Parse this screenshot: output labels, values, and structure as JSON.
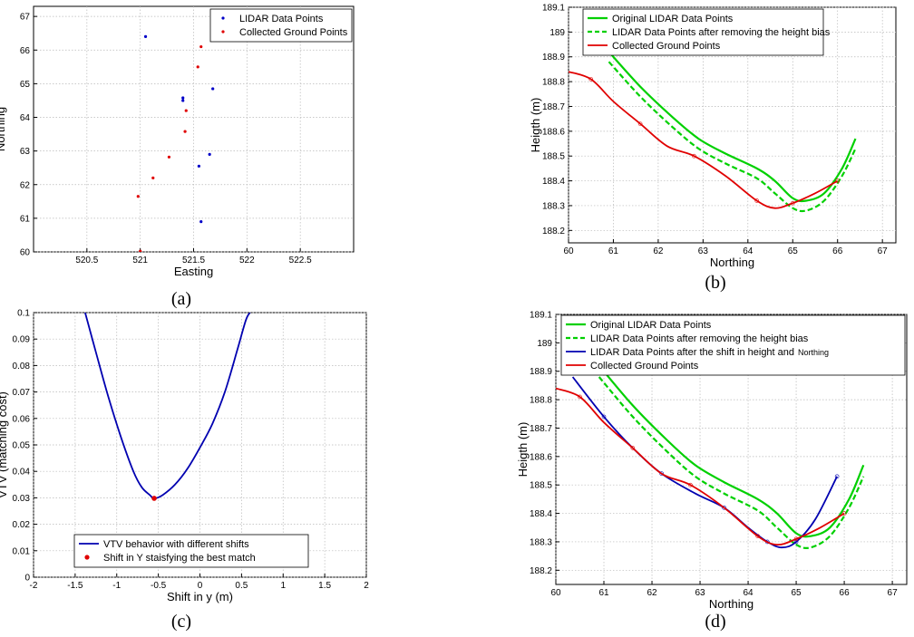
{
  "chart_data": [
    {
      "type": "scatter",
      "label": "(a)",
      "xlabel": "Easting",
      "ylabel": "Northing",
      "xlim": [
        520,
        523
      ],
      "ylim": [
        60,
        67.3
      ],
      "xticks": [
        "520.5",
        "521",
        "521.5",
        "522",
        "522.5"
      ],
      "xtick_values": [
        520.5,
        521,
        521.5,
        522,
        522.5
      ],
      "yticks": [
        "60",
        "61",
        "62",
        "63",
        "64",
        "65",
        "66",
        "67"
      ],
      "ytick_values": [
        60,
        61,
        62,
        63,
        64,
        65,
        66,
        67
      ],
      "grid": true,
      "legend": "top-right",
      "series": [
        {
          "name": "LIDAR Data Points",
          "color": "#0000c8",
          "marker": "dot",
          "x": [
            521.05,
            521.4,
            521.4,
            521.55,
            521.57,
            521.65,
            521.68
          ],
          "y": [
            66.4,
            64.5,
            64.58,
            62.55,
            60.9,
            62.9,
            64.85
          ]
        },
        {
          "name": "Collected Ground Points",
          "color": "#e00000",
          "marker": "dot",
          "x": [
            520.98,
            521.0,
            521.12,
            521.27,
            521.42,
            521.43,
            521.54,
            521.57
          ],
          "y": [
            61.65,
            60.02,
            62.2,
            62.82,
            63.58,
            64.2,
            65.5,
            66.1
          ]
        }
      ]
    },
    {
      "type": "line",
      "label": "(b)",
      "xlabel": "Northing",
      "ylabel": "Heigth (m)",
      "xlim": [
        60,
        67.3
      ],
      "ylim": [
        188.15,
        189.1
      ],
      "xticks": [
        "60",
        "61",
        "62",
        "63",
        "64",
        "65",
        "66",
        "67"
      ],
      "xtick_values": [
        60,
        61,
        62,
        63,
        64,
        65,
        66,
        67
      ],
      "yticks": [
        "188.2",
        "188.3",
        "188.4",
        "188.5",
        "188.6",
        "188.7",
        "188.8",
        "188.9",
        "189",
        "189.1"
      ],
      "ytick_values": [
        188.2,
        188.3,
        188.4,
        188.5,
        188.6,
        188.7,
        188.8,
        188.9,
        189.0,
        189.1
      ],
      "grid": true,
      "legend": "top-left",
      "series": [
        {
          "name": "Original LIDAR Data Points",
          "color": "#00d000",
          "style": "solid",
          "x": [
            60.9,
            61.6,
            62.3,
            62.9,
            63.5,
            64.2,
            64.6,
            65.0,
            65.3,
            65.7,
            66.1,
            66.4
          ],
          "y": [
            188.92,
            188.78,
            188.66,
            188.57,
            188.51,
            188.45,
            188.4,
            188.33,
            188.32,
            188.35,
            188.45,
            188.57
          ]
        },
        {
          "name": "LIDAR Data Points after removing the height bias",
          "color": "#00d000",
          "style": "dashed",
          "x": [
            60.9,
            61.6,
            62.3,
            62.9,
            63.5,
            64.2,
            64.6,
            65.0,
            65.3,
            65.7,
            66.1,
            66.4
          ],
          "y": [
            188.88,
            188.74,
            188.62,
            188.53,
            188.47,
            188.41,
            188.35,
            188.29,
            188.28,
            188.32,
            188.42,
            188.53
          ]
        },
        {
          "name": "Collected Ground Points",
          "color": "#e00000",
          "style": "solid",
          "x": [
            60.0,
            60.5,
            61.0,
            61.6,
            62.2,
            62.8,
            63.5,
            64.2,
            64.6,
            65.0,
            65.5,
            66.0
          ],
          "y": [
            188.84,
            188.81,
            188.72,
            188.63,
            188.54,
            188.5,
            188.42,
            188.32,
            188.29,
            188.31,
            188.35,
            188.4
          ]
        }
      ]
    },
    {
      "type": "line",
      "label": "(c)",
      "xlabel": "Shift in y (m)",
      "ylabel": "VTV (matching cost)",
      "xlim": [
        -2,
        2
      ],
      "ylim": [
        0,
        0.1
      ],
      "xticks": [
        "-2",
        "-1.5",
        "-1",
        "-0.5",
        "0",
        "0.5",
        "1",
        "1.5",
        "2"
      ],
      "xtick_values": [
        -2,
        -1.5,
        -1,
        -0.5,
        0,
        0.5,
        1,
        1.5,
        2
      ],
      "yticks": [
        "0",
        "0.01",
        "0.02",
        "0.03",
        "0.04",
        "0.05",
        "0.06",
        "0.07",
        "0.08",
        "0.09",
        "0.1"
      ],
      "ytick_values": [
        0,
        0.01,
        0.02,
        0.03,
        0.04,
        0.05,
        0.06,
        0.07,
        0.08,
        0.09,
        0.1
      ],
      "grid": true,
      "legend": "bottom-center",
      "series": [
        {
          "name": "VTV behavior with different shifts",
          "color": "#0000b0",
          "style": "solid",
          "x": [
            -1.38,
            -1.25,
            -1.1,
            -0.95,
            -0.8,
            -0.7,
            -0.6,
            -0.55,
            -0.45,
            -0.3,
            -0.15,
            0.0,
            0.15,
            0.3,
            0.45,
            0.55,
            0.6
          ],
          "y": [
            0.1,
            0.085,
            0.068,
            0.053,
            0.04,
            0.034,
            0.031,
            0.0298,
            0.031,
            0.035,
            0.041,
            0.049,
            0.058,
            0.07,
            0.086,
            0.097,
            0.1
          ]
        },
        {
          "name": "Shift in Y staisfying the best match",
          "color": "#e00000",
          "marker": "dot",
          "x": [
            -0.55
          ],
          "y": [
            0.0298
          ]
        }
      ]
    },
    {
      "type": "line",
      "label": "(d)",
      "xlabel": "Northing",
      "ylabel": "Heigth (m)",
      "xlim": [
        60,
        67.3
      ],
      "ylim": [
        188.15,
        189.1
      ],
      "xticks": [
        "60",
        "61",
        "62",
        "63",
        "64",
        "65",
        "66",
        "67"
      ],
      "xtick_values": [
        60,
        61,
        62,
        63,
        64,
        65,
        66,
        67
      ],
      "yticks": [
        "188.2",
        "188.3",
        "188.4",
        "188.5",
        "188.6",
        "188.7",
        "188.8",
        "188.9",
        "189",
        "189.1"
      ],
      "ytick_values": [
        188.2,
        188.3,
        188.4,
        188.5,
        188.6,
        188.7,
        188.8,
        188.9,
        189.0,
        189.1
      ],
      "grid": true,
      "legend": "top-left",
      "series": [
        {
          "name": "Original LIDAR Data Points",
          "color": "#00d000",
          "style": "solid",
          "x": [
            60.9,
            61.6,
            62.3,
            62.9,
            63.5,
            64.2,
            64.6,
            65.0,
            65.3,
            65.7,
            66.1,
            66.4
          ],
          "y": [
            188.92,
            188.78,
            188.66,
            188.57,
            188.51,
            188.45,
            188.4,
            188.33,
            188.32,
            188.35,
            188.45,
            188.57
          ]
        },
        {
          "name": "LIDAR Data Points after removing the height bias",
          "color": "#00d000",
          "style": "dashed",
          "x": [
            60.9,
            61.6,
            62.3,
            62.9,
            63.5,
            64.2,
            64.6,
            65.0,
            65.3,
            65.7,
            66.1,
            66.4
          ],
          "y": [
            188.88,
            188.74,
            188.62,
            188.53,
            188.47,
            188.41,
            188.35,
            188.29,
            188.28,
            188.32,
            188.42,
            188.53
          ]
        },
        {
          "name": "LIDAR Data Points after the shift in height and",
          "name_suffix": "Northing",
          "color": "#0000b0",
          "style": "solid",
          "x": [
            60.35,
            61.0,
            61.6,
            62.2,
            62.9,
            63.5,
            64.0,
            64.4,
            64.7,
            65.0,
            65.4,
            65.85
          ],
          "y": [
            188.88,
            188.74,
            188.63,
            188.54,
            188.47,
            188.42,
            188.35,
            188.3,
            188.28,
            188.3,
            188.38,
            188.53
          ]
        },
        {
          "name": "Collected Ground Points",
          "color": "#e00000",
          "style": "solid",
          "x": [
            60.0,
            60.5,
            61.0,
            61.6,
            62.2,
            62.8,
            63.5,
            64.2,
            64.6,
            65.0,
            65.5,
            66.0
          ],
          "y": [
            188.84,
            188.81,
            188.72,
            188.63,
            188.54,
            188.5,
            188.42,
            188.32,
            188.29,
            188.31,
            188.35,
            188.4
          ]
        }
      ]
    }
  ]
}
